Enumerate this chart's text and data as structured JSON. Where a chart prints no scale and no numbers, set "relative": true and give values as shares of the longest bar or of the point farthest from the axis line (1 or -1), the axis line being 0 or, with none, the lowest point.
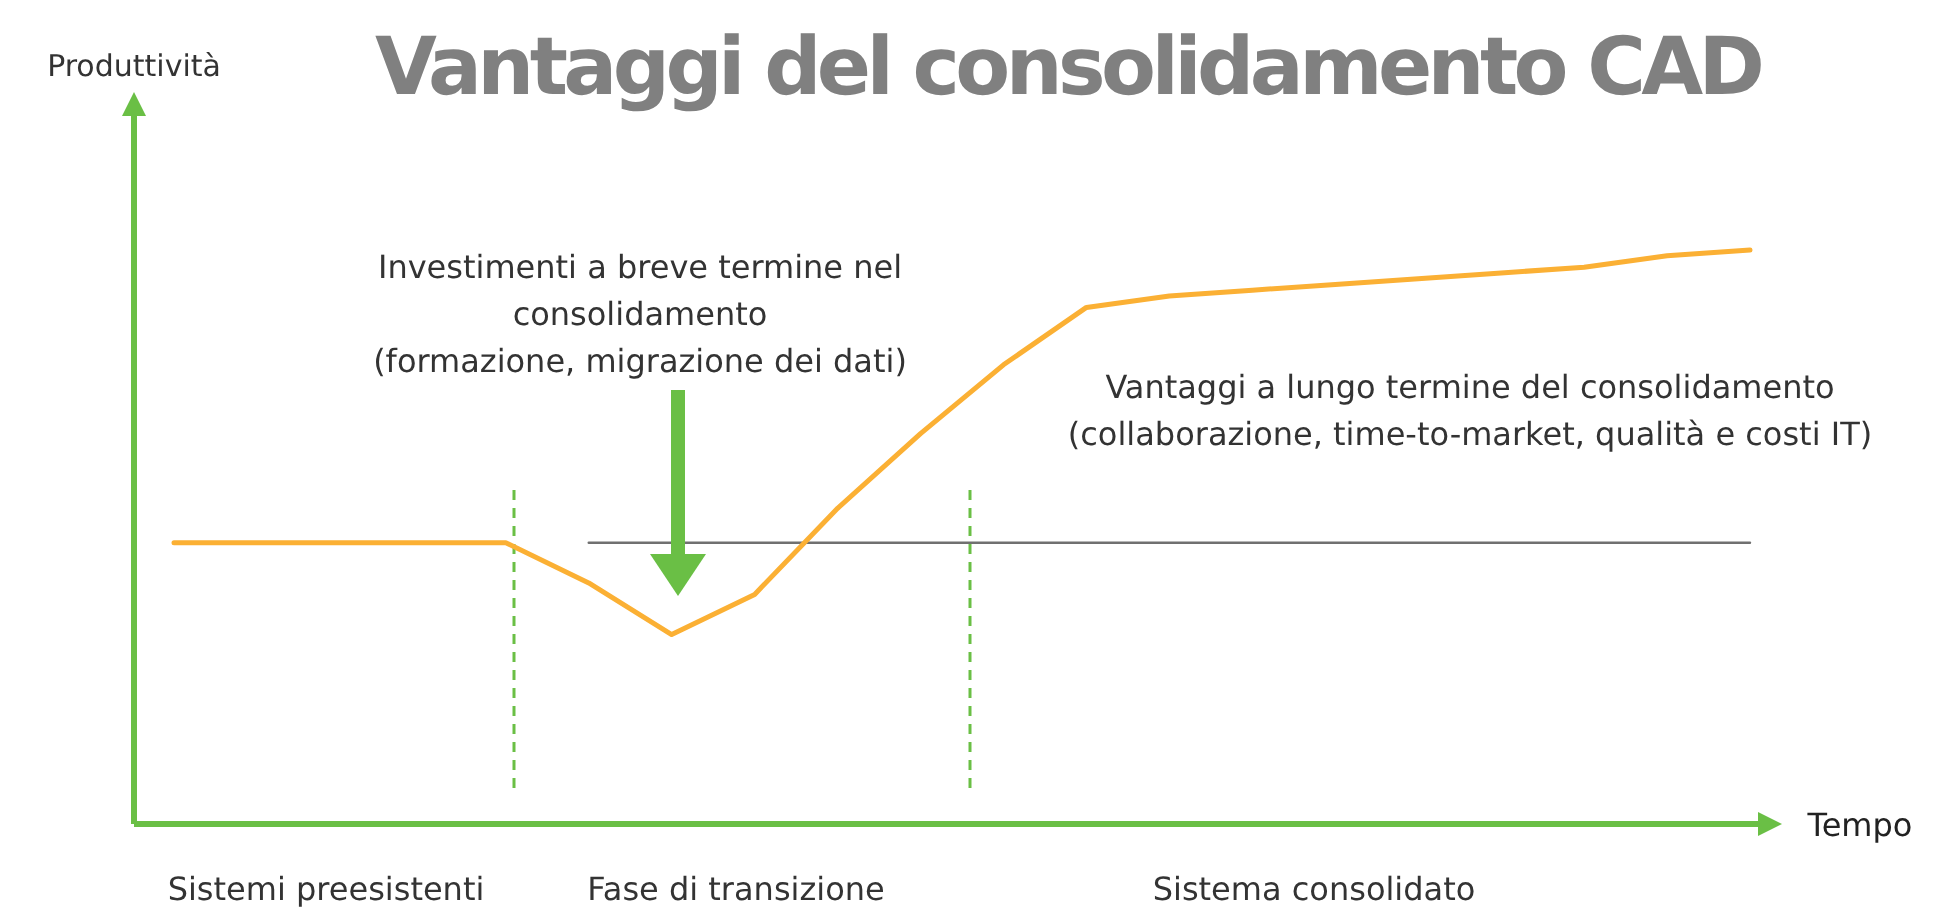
{
  "chart_data": {
    "type": "line",
    "title": "Vantaggi del consolidamento CAD",
    "xlabel": "Tempo",
    "relative": true,
    "line_style": "solid",
    "categories": [
      null,
      null,
      null,
      null,
      null,
      null,
      null,
      null,
      null,
      null,
      null,
      null,
      null,
      null,
      null,
      null,
      null,
      null,
      null,
      null
    ],
    "series": [
      {
        "color": "#fbb034",
        "values": [
          0.49,
          0.49,
          0.49,
          0.49,
          0.49,
          0.42,
          0.33,
          0.4,
          0.55,
          0.68,
          0.8,
          0.9,
          0.92,
          0.93,
          0.94,
          0.95,
          0.96,
          0.97,
          0.99,
          1
        ]
      },
      {
        "color": "#707070",
        "values": [
          null,
          null,
          null,
          null,
          null,
          0.49,
          0.49,
          0.49,
          0.49,
          0.49,
          0.49,
          0.49,
          0.49,
          0.49,
          0.49,
          0.49,
          0.49,
          0.49,
          0.49,
          0.49
        ]
      }
    ],
    "annotations": [
      "Investimenti a breve termine nel\nconsolidamento\n(formazione, migrazione dei dati)",
      "Vantaggi a lungo termine del consolidamento\n(collaborazione, time-to-market, qualità e costi IT)",
      "Sistemi preesistenti",
      "Fase di transizione",
      "Sistema consolidato",
      "Produttività"
    ]
  }
}
